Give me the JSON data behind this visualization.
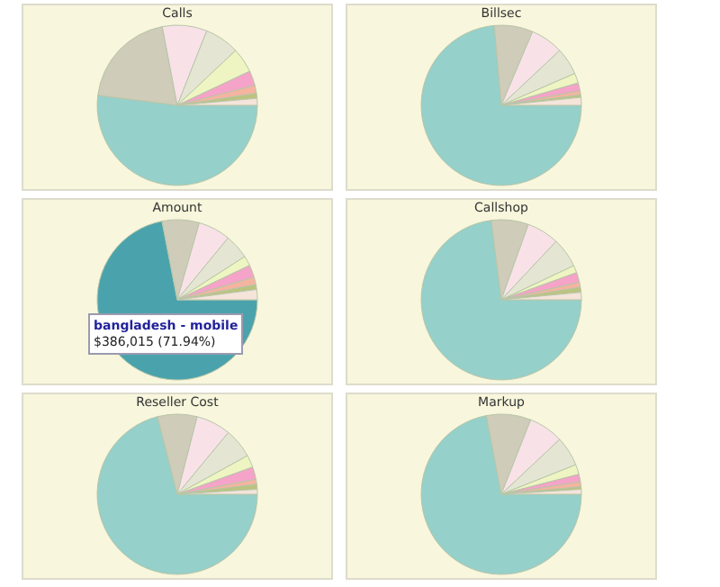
{
  "chart_data": [
    {
      "type": "pie",
      "title": "Calls",
      "categories": [
        null,
        null,
        null,
        null,
        null,
        null,
        null,
        null,
        null
      ],
      "values": [
        52,
        20,
        9,
        7,
        5,
        3,
        1.6,
        1,
        1.4
      ],
      "colors": [
        "#95d0ca",
        "#cfccb9",
        "#f8e2e8",
        "#e4e6d3",
        "#eef5c2",
        "#f5a3c8",
        "#f5b4a0",
        "#bcc37f",
        "#f4e4da"
      ]
    },
    {
      "type": "pie",
      "title": "Billsec",
      "categories": [
        null,
        null,
        null,
        null,
        null,
        null,
        null,
        null,
        null
      ],
      "values": [
        73.6,
        7.8,
        6.6,
        5.5,
        2,
        1.6,
        0.8,
        0.5,
        1.6
      ],
      "colors": [
        "#95d0ca",
        "#cfccb9",
        "#f8e2e8",
        "#e4e6d3",
        "#eef5c2",
        "#f5a3c8",
        "#f5b4a0",
        "#bcc37f",
        "#f4e4da"
      ]
    },
    {
      "type": "pie",
      "title": "Amount",
      "categories": [
        null,
        null,
        null,
        null,
        null,
        null,
        null,
        null,
        null
      ],
      "values": [
        71.94,
        7.5,
        6.5,
        5,
        2,
        2.5,
        1.5,
        1,
        2.06
      ],
      "colors": [
        "#4aa3ac",
        "#cfccb9",
        "#f8e2e8",
        "#e4e6d3",
        "#eef5c2",
        "#f5a3c8",
        "#f5b4a0",
        "#bcc37f",
        "#f4e4da"
      ],
      "annotations": [
        "bangladesh - mobile",
        "$386,015 (71.94%)"
      ]
    },
    {
      "type": "pie",
      "title": "Callshop",
      "categories": [
        null,
        null,
        null,
        null,
        null,
        null,
        null,
        null,
        null
      ],
      "values": [
        73,
        7.5,
        6.5,
        6,
        1.5,
        2,
        1,
        1,
        1.5
      ],
      "colors": [
        "#95d0ca",
        "#cfccb9",
        "#f8e2e8",
        "#e4e6d3",
        "#eef5c2",
        "#f5a3c8",
        "#f5b4a0",
        "#bcc37f",
        "#f4e4da"
      ]
    },
    {
      "type": "pie",
      "title": "Reseller Cost",
      "categories": [
        null,
        null,
        null,
        null,
        null,
        null,
        null,
        null,
        null
      ],
      "values": [
        71,
        8,
        7,
        6,
        2.5,
        2.5,
        1,
        1,
        1
      ],
      "colors": [
        "#95d0ca",
        "#cfccb9",
        "#f8e2e8",
        "#e4e6d3",
        "#eef5c2",
        "#f5a3c8",
        "#f5b4a0",
        "#bcc37f",
        "#f4e4da"
      ]
    },
    {
      "type": "pie",
      "title": "Markup",
      "categories": [
        null,
        null,
        null,
        null,
        null,
        null,
        null,
        null,
        null
      ],
      "values": [
        72,
        9,
        7,
        6,
        2,
        1.5,
        1,
        0.5,
        1
      ],
      "colors": [
        "#95d0ca",
        "#cfccb9",
        "#f8e2e8",
        "#e4e6d3",
        "#eef5c2",
        "#f5a3c8",
        "#f5b4a0",
        "#bcc37f",
        "#f4e4da"
      ]
    }
  ]
}
